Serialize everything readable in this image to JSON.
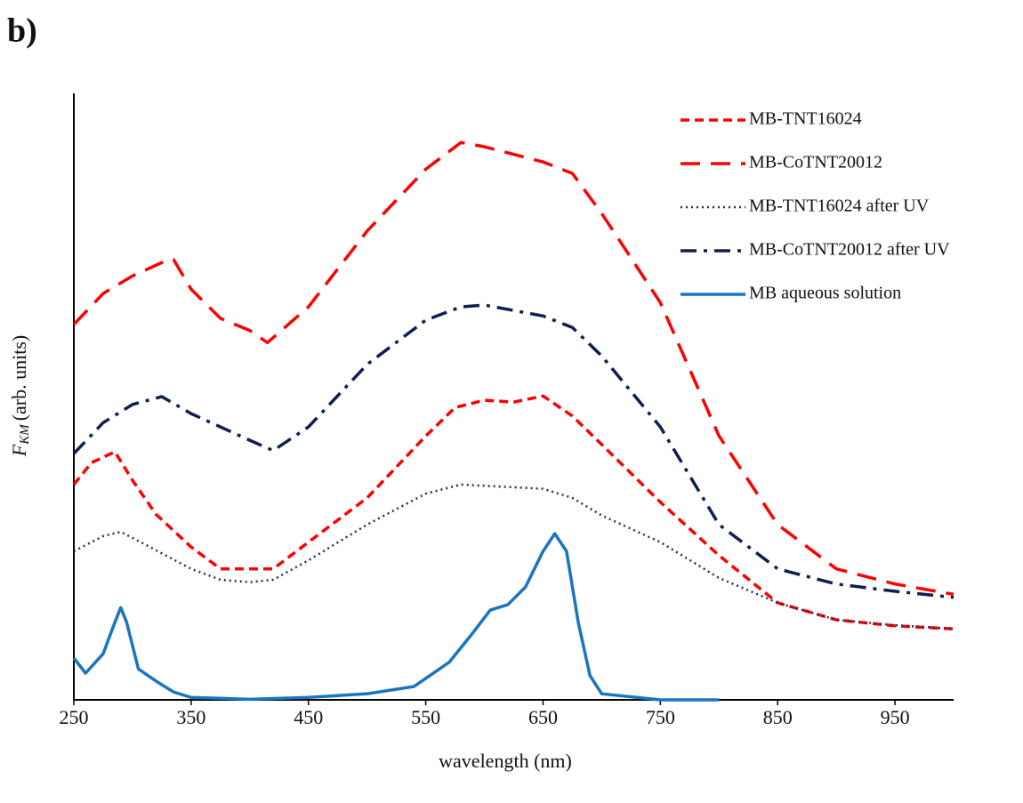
{
  "chart_data": {
    "type": "line",
    "panel_label": "b)",
    "xlabel": "wavelength (nm)",
    "ylabel": {
      "symbol": "F",
      "subscript": "KM",
      "text": "(arb. units)"
    },
    "xlim": [
      250,
      1000
    ],
    "xticks": [
      250,
      350,
      450,
      550,
      650,
      750,
      850,
      950
    ],
    "ylim": [
      0,
      100
    ],
    "legend": "upper right",
    "series": [
      {
        "name": "MB-TNT16024",
        "color": "#ff0000",
        "linestyle": "dashed",
        "x": [
          250,
          265,
          285,
          300,
          320,
          350,
          375,
          400,
          420,
          450,
          500,
          550,
          575,
          600,
          625,
          650,
          675,
          700,
          750,
          800,
          850,
          900,
          950,
          1000
        ],
        "values": [
          35.5,
          39.1,
          40.9,
          36.2,
          30.6,
          25.2,
          21.6,
          21.6,
          21.6,
          26.0,
          33.3,
          43.5,
          48.2,
          49.4,
          49.1,
          50.1,
          46.8,
          42.1,
          32.6,
          23.8,
          16.0,
          13.2,
          12.2,
          11.7
        ]
      },
      {
        "name": "MB-CoTNT20012",
        "color": "#ff0000",
        "linestyle": "long-dashed",
        "x": [
          250,
          275,
          300,
          325,
          335,
          350,
          375,
          400,
          415,
          450,
          500,
          550,
          580,
          600,
          650,
          675,
          700,
          750,
          800,
          850,
          900,
          950,
          1000
        ],
        "values": [
          61.9,
          67.0,
          69.9,
          72.1,
          72.6,
          67.7,
          62.9,
          60.9,
          58.9,
          64.8,
          77.3,
          87.5,
          91.9,
          91.2,
          88.7,
          86.8,
          80.2,
          65.5,
          43.5,
          28.9,
          21.6,
          19.1,
          17.4
        ]
      },
      {
        "name": "MB-TNT16024 after UV",
        "color": "#1f3060",
        "linestyle": "dotted",
        "x": [
          250,
          275,
          290,
          310,
          350,
          375,
          400,
          420,
          450,
          500,
          550,
          580,
          600,
          650,
          675,
          700,
          750,
          800,
          850,
          900,
          950,
          1000
        ],
        "values": [
          24.5,
          27.0,
          27.7,
          25.7,
          21.6,
          19.8,
          19.4,
          19.8,
          23.0,
          28.9,
          34.0,
          35.5,
          35.3,
          34.8,
          33.3,
          30.4,
          26.0,
          20.1,
          16.0,
          13.2,
          12.3,
          11.7
        ]
      },
      {
        "name": "MB-CoTNT20012 after UV",
        "color": "#0f2050",
        "linestyle": "dash-dot",
        "x": [
          250,
          275,
          300,
          325,
          350,
          375,
          400,
          420,
          450,
          500,
          550,
          580,
          600,
          650,
          675,
          700,
          750,
          800,
          850,
          900,
          950,
          1000
        ],
        "values": [
          40.6,
          45.7,
          48.7,
          50.0,
          47.2,
          45.0,
          42.8,
          41.1,
          45.0,
          55.3,
          62.6,
          64.8,
          65.1,
          63.3,
          61.4,
          56.7,
          45.0,
          28.9,
          21.6,
          19.1,
          17.9,
          16.9
        ]
      },
      {
        "name": "MB aqueous solution",
        "color": "#1a75c0",
        "linestyle": "solid",
        "x": [
          250,
          260,
          275,
          285,
          290,
          295,
          305,
          320,
          335,
          350,
          400,
          450,
          500,
          540,
          570,
          590,
          605,
          620,
          635,
          650,
          660,
          670,
          680,
          690,
          700,
          750,
          800
        ],
        "values": [
          6.9,
          4.4,
          7.6,
          12.8,
          15.2,
          12.8,
          5.1,
          3.1,
          1.3,
          0.4,
          0.1,
          0.4,
          1.0,
          2.2,
          6.2,
          11.0,
          14.8,
          15.7,
          18.6,
          24.5,
          27.4,
          24.5,
          12.8,
          4.0,
          1.0,
          0,
          0
        ]
      }
    ]
  }
}
